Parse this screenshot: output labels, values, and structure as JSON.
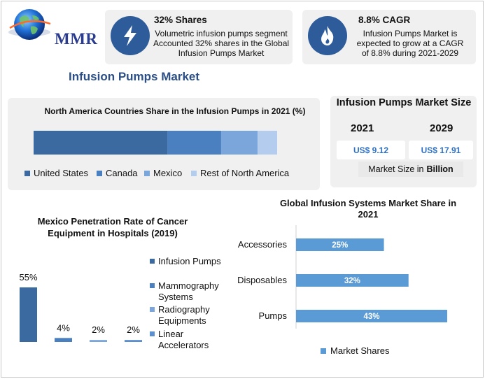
{
  "logo": {
    "text": "MMR"
  },
  "cards": [
    {
      "title": "32% Shares",
      "body": "Volumetric infusion pumps segment Accounted 32% shares in the Global Infusion Pumps Market",
      "icon": "lightning-bolt-icon"
    },
    {
      "title": "8.8% CAGR",
      "body": "Infusion Pumps Market is expected to grow at a CAGR of 8.8% during 2021-2029",
      "icon": "flame-icon"
    }
  ],
  "main_title": "Infusion Pumps Market",
  "market_size": {
    "title": "Infusion Pumps Market Size",
    "year1": "2021",
    "year2": "2029",
    "value1": "US$ 9.12",
    "value2": "US$ 17.91",
    "unit_prefix": "Market Size in",
    "unit": "Billion"
  },
  "colors": {
    "bg_panel": "#f0f0f0",
    "icon_blue": "#2e5c9a",
    "title_blue": "#2b4f86",
    "bar_blue": "#5b9bd5",
    "value_blue": "#2e70c4"
  },
  "chart_data": [
    {
      "type": "bar",
      "orientation": "horizontal-stacked",
      "title": "North America Countries Share in the Infusion Pumps in 2021 (%)",
      "series": [
        {
          "name": "United States",
          "values": [
            55
          ],
          "color": "#3b6aa0"
        },
        {
          "name": "Canada",
          "values": [
            22
          ],
          "color": "#4a80c0"
        },
        {
          "name": "Mexico",
          "values": [
            15
          ],
          "color": "#7aa6dc"
        },
        {
          "name": "Rest of North America",
          "values": [
            8
          ],
          "color": "#b4cdee"
        }
      ],
      "legend_position": "bottom",
      "grid": false
    },
    {
      "type": "bar",
      "title": "Mexico Penetration Rate of Cancer Equipment in Hospitals (2019)",
      "categories": [
        "Infusion Pumps",
        "Mammography Systems",
        "Radiography Equipments",
        "Linear Accelerators"
      ],
      "values": [
        55,
        4,
        2,
        2
      ],
      "data_labels": [
        "55%",
        "4%",
        "2%",
        "2%"
      ],
      "colors": [
        "#3b6aa0",
        "#4a80c0",
        "#7aa6dc",
        "#5b8fd0"
      ],
      "legend_position": "right",
      "grid": false
    },
    {
      "type": "bar",
      "orientation": "horizontal",
      "title": "Global Infusion Systems Market Share in 2021",
      "categories": [
        "Accessories",
        "Disposables",
        "Pumps"
      ],
      "values": [
        25,
        32,
        43
      ],
      "data_labels": [
        "25%",
        "32%",
        "43%"
      ],
      "series_name": "Market Shares",
      "xlim": [
        0,
        43
      ],
      "legend_position": "bottom",
      "grid": false
    }
  ]
}
